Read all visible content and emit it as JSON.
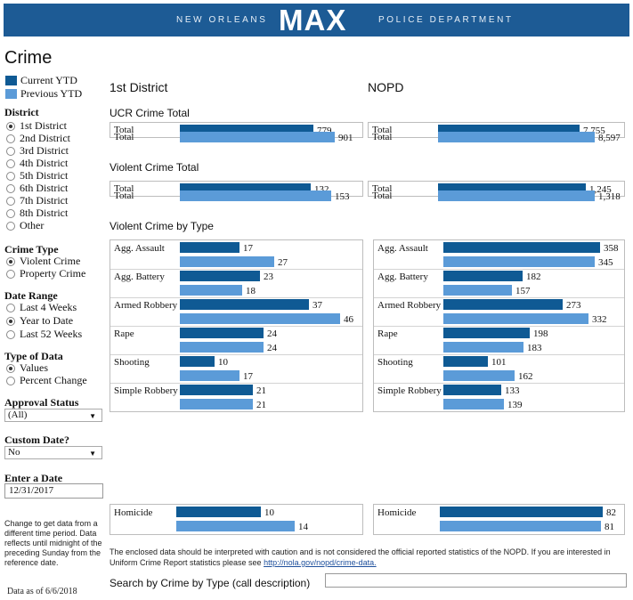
{
  "header": {
    "left_text": "NEW ORLEANS",
    "logo": "MAX",
    "right_text": "POLICE DEPARTMENT"
  },
  "sidebar": {
    "title": "Crime",
    "legend": [
      {
        "label": "Current YTD",
        "color": "#0f5a94"
      },
      {
        "label": "Previous YTD",
        "color": "#5b9bd8"
      }
    ],
    "district": {
      "title": "District",
      "options": [
        "1st District",
        "2nd District",
        "3rd District",
        "4th District",
        "5th District",
        "6th District",
        "7th District",
        "8th District",
        "Other"
      ],
      "selected": "1st District"
    },
    "crime_type": {
      "title": "Crime Type",
      "options": [
        "Violent Crime",
        "Property Crime"
      ],
      "selected": "Violent Crime"
    },
    "date_range": {
      "title": "Date Range",
      "options": [
        "Last 4 Weeks",
        "Year to Date",
        "Last 52 Weeks"
      ],
      "selected": "Year to Date"
    },
    "type_of_data": {
      "title": "Type of Data",
      "options": [
        "Values",
        "Percent Change"
      ],
      "selected": "Values"
    },
    "approval_status": {
      "title": "Approval Status",
      "value": "(All)"
    },
    "custom_date": {
      "title": "Custom Date?",
      "value": "No"
    },
    "enter_date": {
      "title": "Enter a Date",
      "value": "12/31/2017"
    },
    "note": "Change to get data from a different time period. Data reflects until midnight of the preceding Sunday from the reference date.",
    "data_as_of": "Data as of 6/6/2018"
  },
  "main": {
    "district_heading": "1st District",
    "nopd_heading": "NOPD",
    "ucr_title": "UCR Crime Total",
    "violent_title": "Violent Crime Total",
    "by_type_title": "Violent Crime by Type",
    "disclaimer_text": "The enclosed data should be interpreted with caution and is not considered the official reported statistics of the NOPD. If you are interested in Uniform Crime Report statistics please see ",
    "disclaimer_link": "http://nola.gov/nopd/crime-data.",
    "search_label": "Search by Crime by Type (call description)"
  },
  "chart_data": [
    {
      "type": "bar",
      "title": "UCR Crime Total",
      "categories": [
        "Total"
      ],
      "series": [
        {
          "name": "Current YTD",
          "district": [
            779
          ],
          "nopd": [
            7755
          ]
        },
        {
          "name": "Previous YTD",
          "district": [
            901
          ],
          "nopd": [
            8597
          ]
        }
      ],
      "labels": {
        "district": [
          "779",
          "901"
        ],
        "nopd": [
          "7,755",
          "8,597"
        ]
      }
    },
    {
      "type": "bar",
      "title": "Violent Crime Total",
      "categories": [
        "Total"
      ],
      "series": [
        {
          "name": "Current YTD",
          "district": [
            132
          ],
          "nopd": [
            1245
          ]
        },
        {
          "name": "Previous YTD",
          "district": [
            153
          ],
          "nopd": [
            1318
          ]
        }
      ],
      "labels": {
        "district": [
          "132",
          "153"
        ],
        "nopd": [
          "1,245",
          "1,318"
        ]
      }
    },
    {
      "type": "bar",
      "title": "Violent Crime by Type",
      "categories": [
        "Agg. Assault",
        "Agg. Battery",
        "Armed Robbery",
        "Rape",
        "Shooting",
        "Simple Robbery",
        "Homicide"
      ],
      "series": [
        {
          "name": "Current YTD",
          "district": [
            17,
            23,
            37,
            24,
            10,
            21,
            10
          ],
          "nopd": [
            358,
            182,
            273,
            198,
            101,
            133,
            82
          ]
        },
        {
          "name": "Previous YTD",
          "district": [
            27,
            18,
            46,
            24,
            17,
            21,
            14
          ],
          "nopd": [
            345,
            157,
            332,
            183,
            162,
            139,
            81
          ]
        }
      ]
    }
  ]
}
